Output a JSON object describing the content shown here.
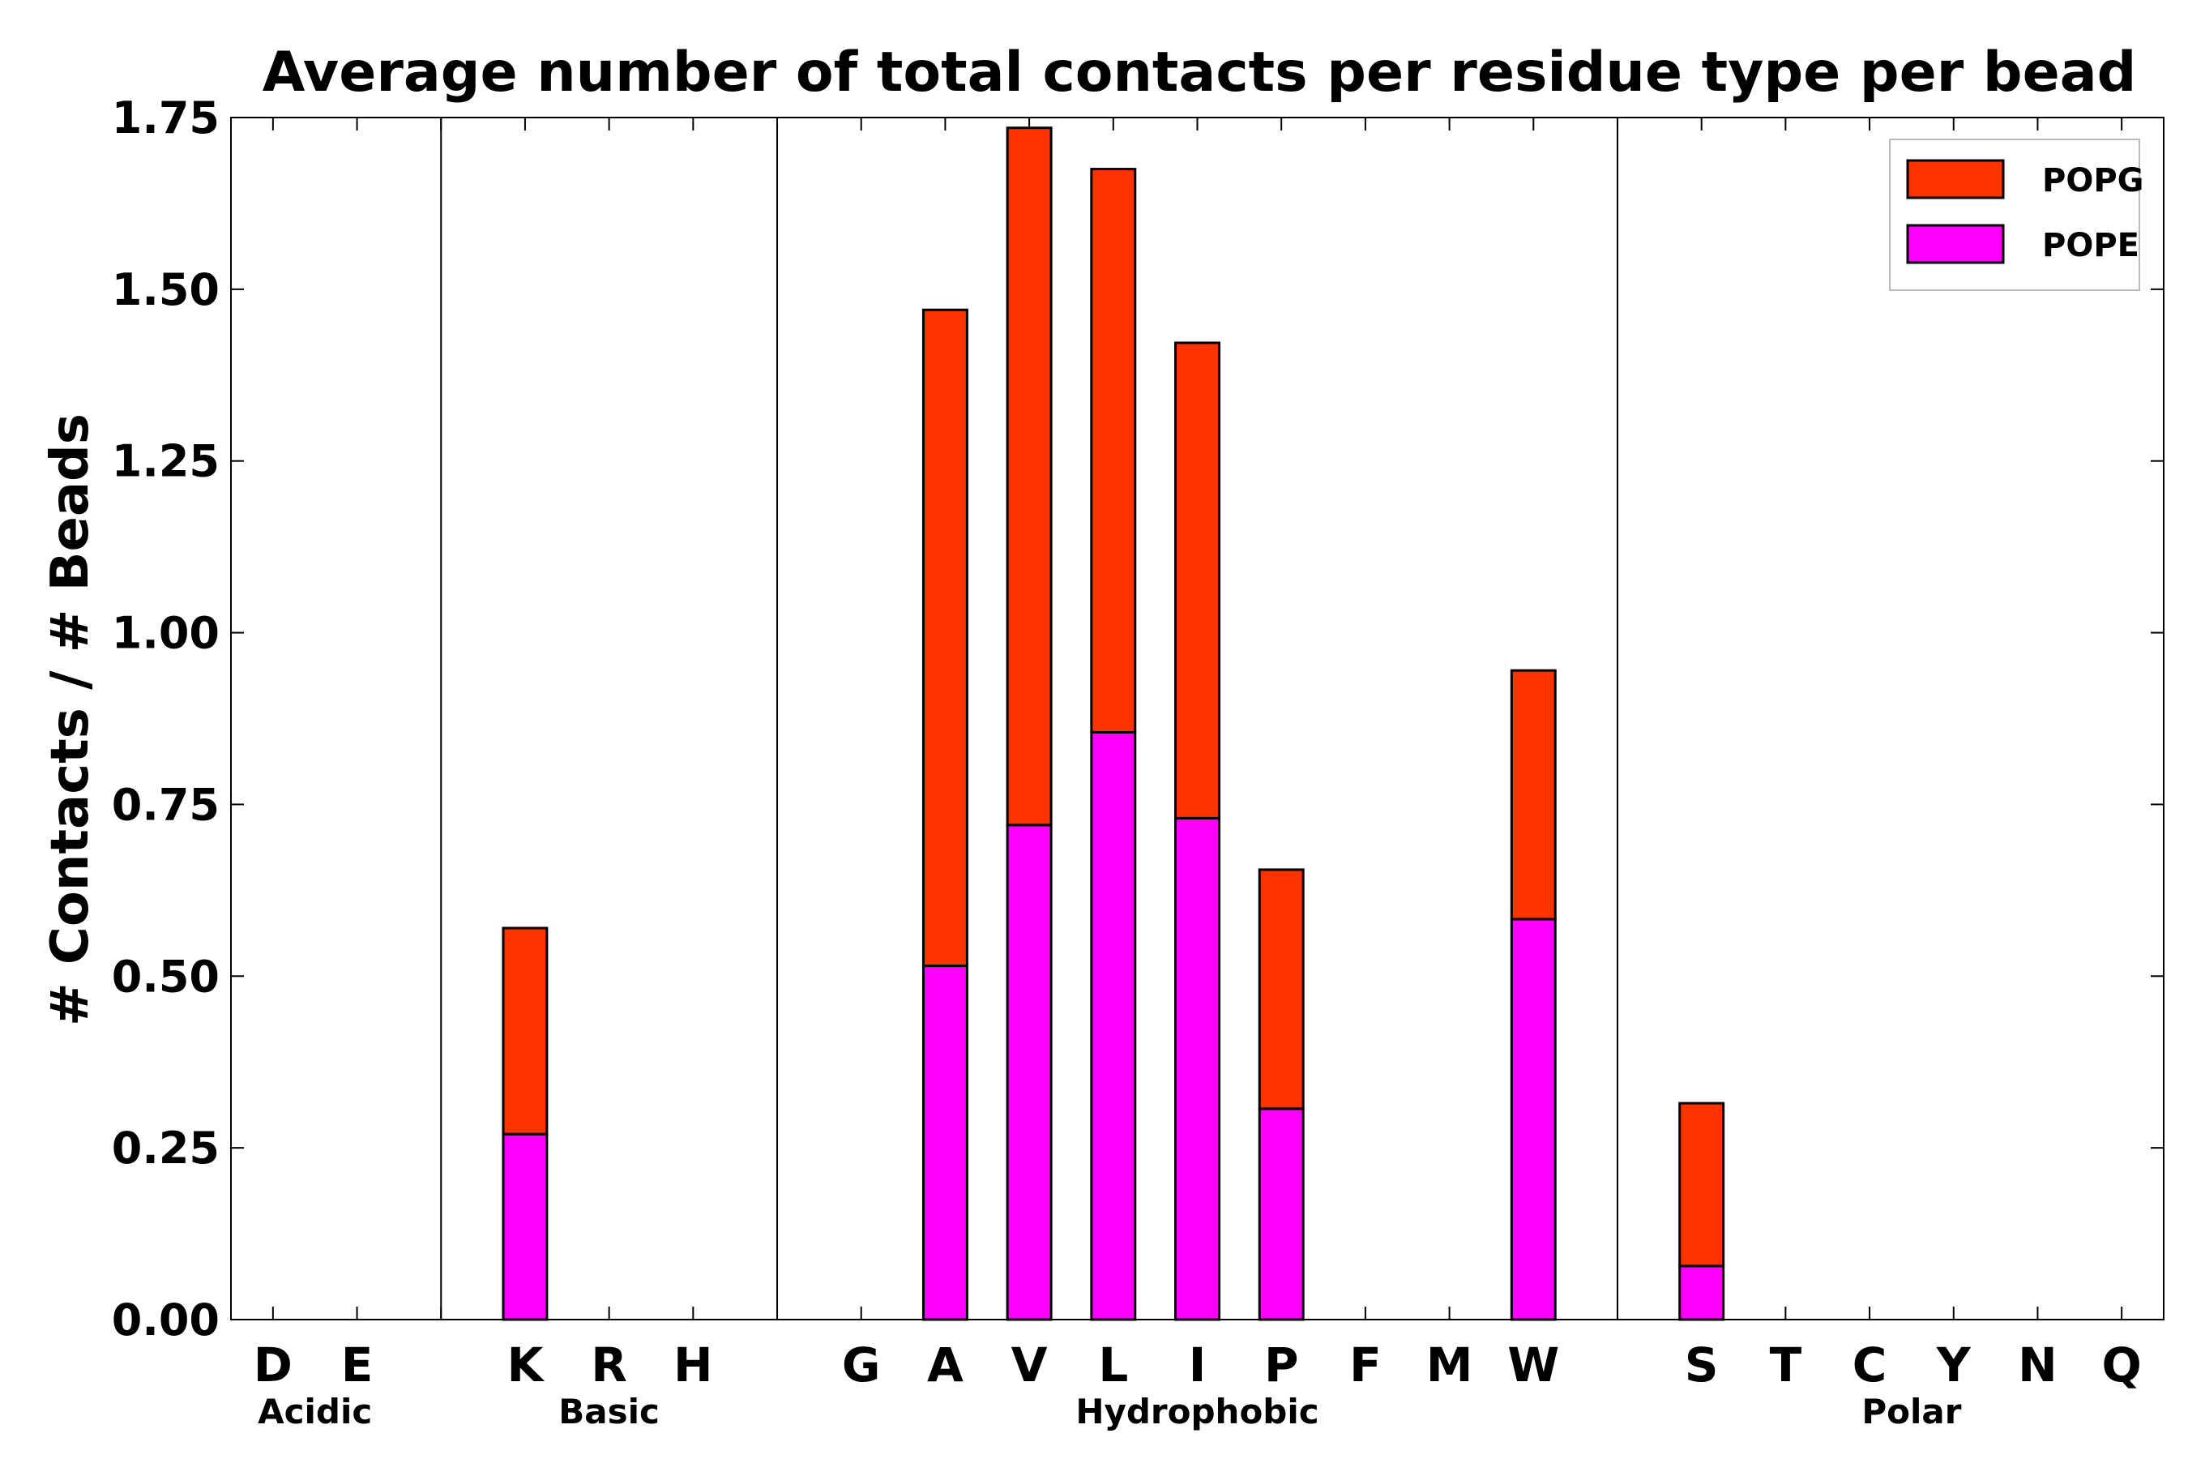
{
  "chart_data": {
    "type": "bar",
    "stacked": true,
    "title": "Average number of total contacts per residue type per bead",
    "xlabel": "",
    "ylabel": "# Contacts / # Beads",
    "ylim": [
      0,
      1.75
    ],
    "yticks": [
      "0.00",
      "0.25",
      "0.50",
      "0.75",
      "1.00",
      "1.25",
      "1.50",
      "1.75"
    ],
    "grid": false,
    "legend_position": "top-right",
    "categories": [
      "D",
      "E",
      "",
      "K",
      "R",
      "H",
      "",
      "G",
      "A",
      "V",
      "L",
      "I",
      "P",
      "F",
      "M",
      "W",
      "",
      "S",
      "T",
      "C",
      "Y",
      "N",
      "Q"
    ],
    "series": [
      {
        "name": "POPE",
        "color": "#ff00ff",
        "values": [
          0,
          0,
          0,
          0.27,
          0,
          0,
          0,
          0,
          0.515,
          0.72,
          0.855,
          0.73,
          0.307,
          0,
          0,
          0.583,
          0,
          0.078,
          0,
          0,
          0,
          0,
          0
        ]
      },
      {
        "name": "POPG",
        "color": "#ff3300",
        "values": [
          0,
          0,
          0,
          0.3,
          0,
          0,
          0,
          0,
          0.955,
          1.015,
          0.82,
          0.692,
          0.348,
          0,
          0,
          0.362,
          0,
          0.237,
          0,
          0,
          0,
          0,
          0
        ]
      }
    ],
    "legend": [
      "POPG",
      "POPE"
    ],
    "groups": [
      {
        "label": "Acidic",
        "from": "D",
        "to": "E"
      },
      {
        "label": "Basic",
        "from": "K",
        "to": "H"
      },
      {
        "label": "Hydrophobic",
        "from": "G",
        "to": "W"
      },
      {
        "label": "Polar",
        "from": "S",
        "to": "Q"
      }
    ],
    "separators_after_index": [
      2,
      6,
      16
    ]
  }
}
